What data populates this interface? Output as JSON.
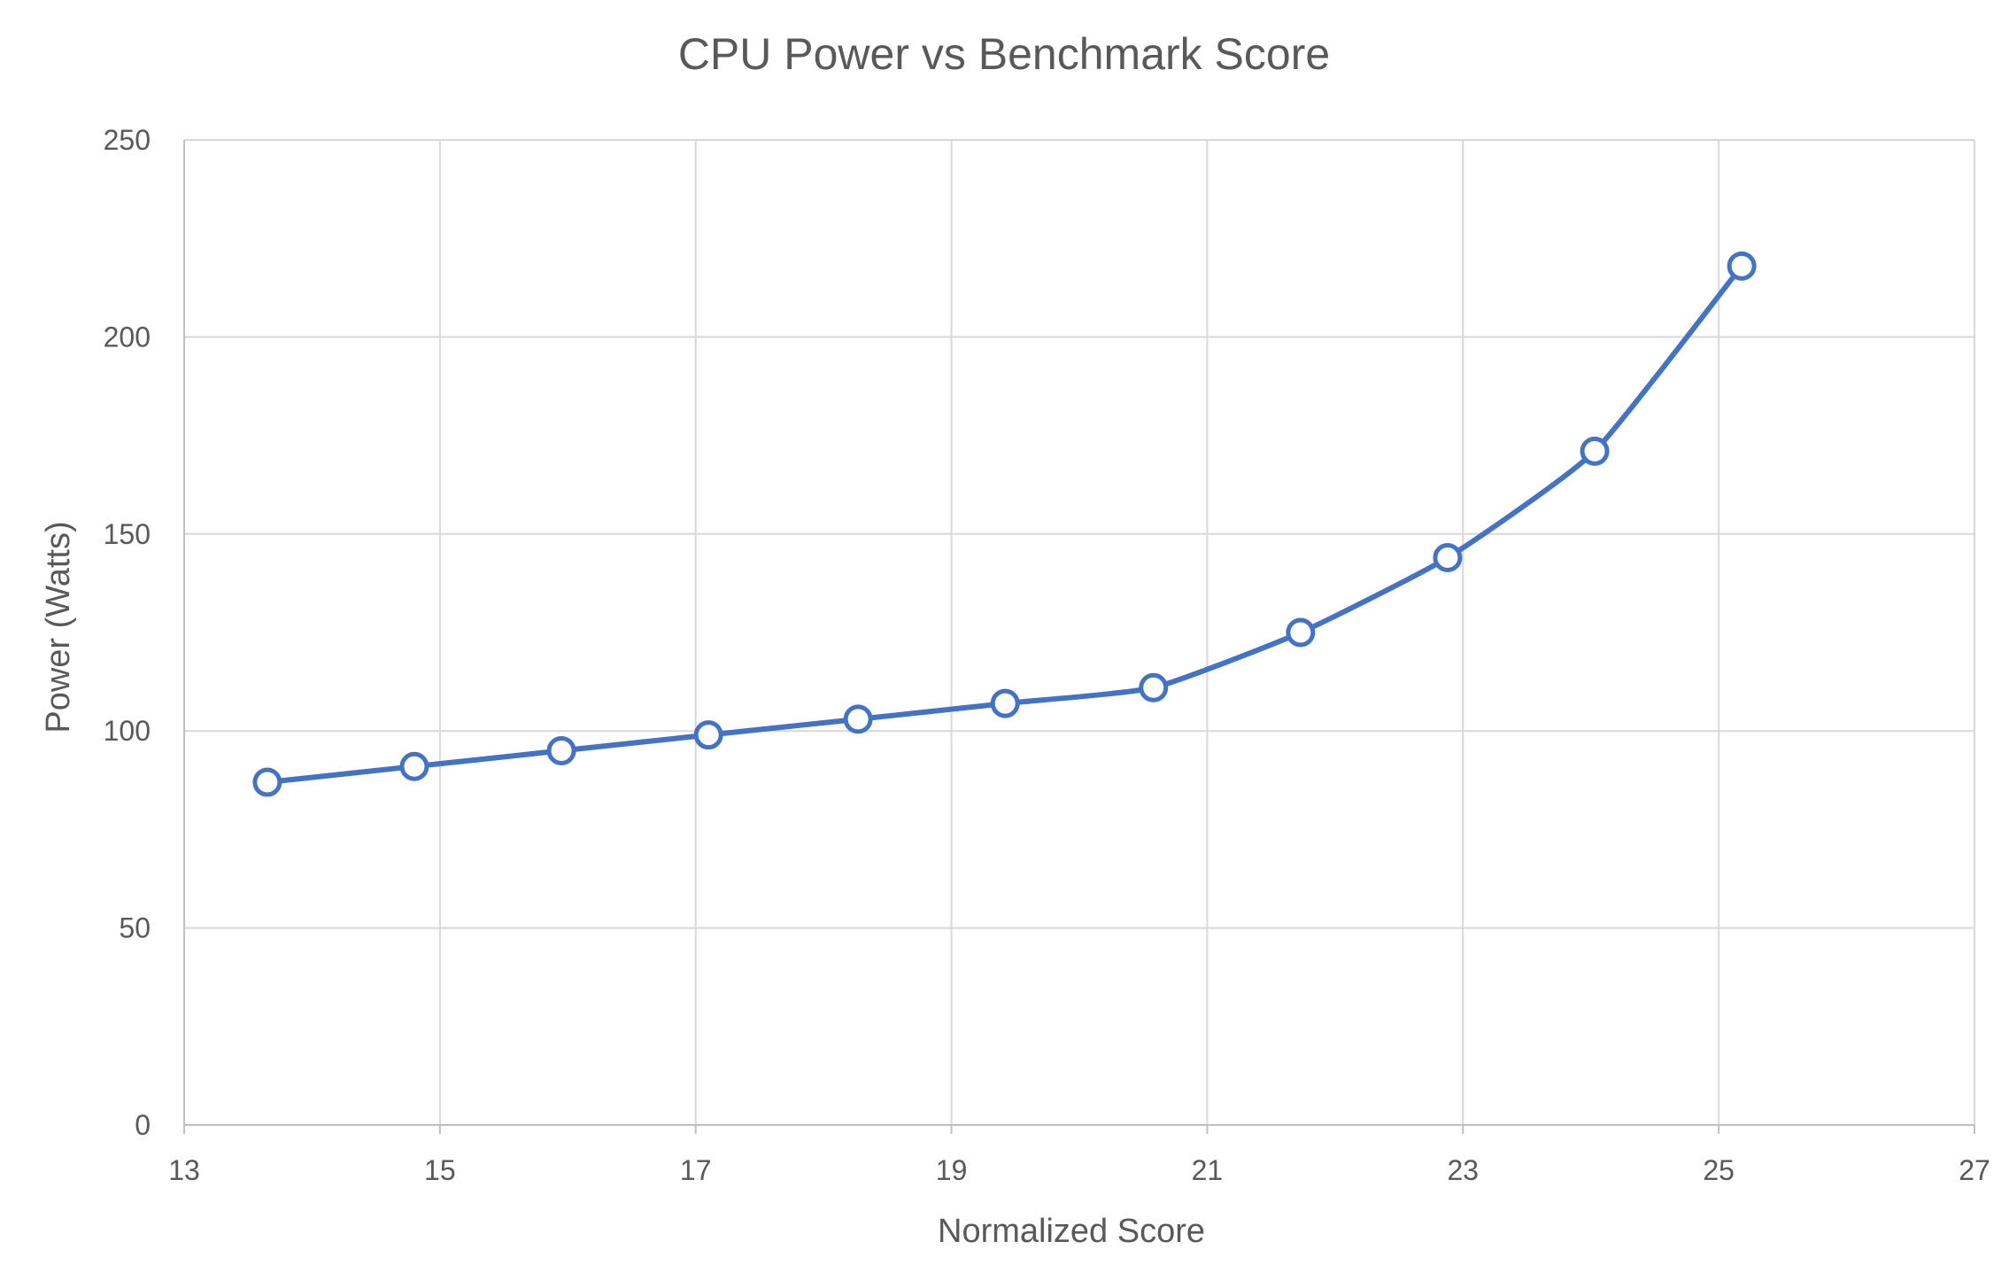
{
  "chart_data": {
    "type": "scatter",
    "title": "CPU Power vs Benchmark Score",
    "xlabel": "Normalized Score",
    "ylabel": "Power (Watts)",
    "xlim": [
      13,
      27
    ],
    "ylim": [
      0,
      250
    ],
    "xticks": [
      "13",
      "15",
      "17",
      "19",
      "21",
      "23",
      "25",
      "27"
    ],
    "yticks": [
      "0",
      "50",
      "100",
      "150",
      "200",
      "250"
    ],
    "grid": true,
    "legend": "none",
    "series": [
      {
        "color": "#4472c4",
        "marker": "open-circle",
        "line": "smoothed",
        "x": [
          13.65,
          14.8,
          15.95,
          17.1,
          18.27,
          19.42,
          20.58,
          21.73,
          22.88,
          24.03,
          25.18
        ],
        "y": [
          87,
          91,
          95,
          99,
          103,
          107,
          111,
          125,
          144,
          171,
          218
        ]
      }
    ]
  }
}
